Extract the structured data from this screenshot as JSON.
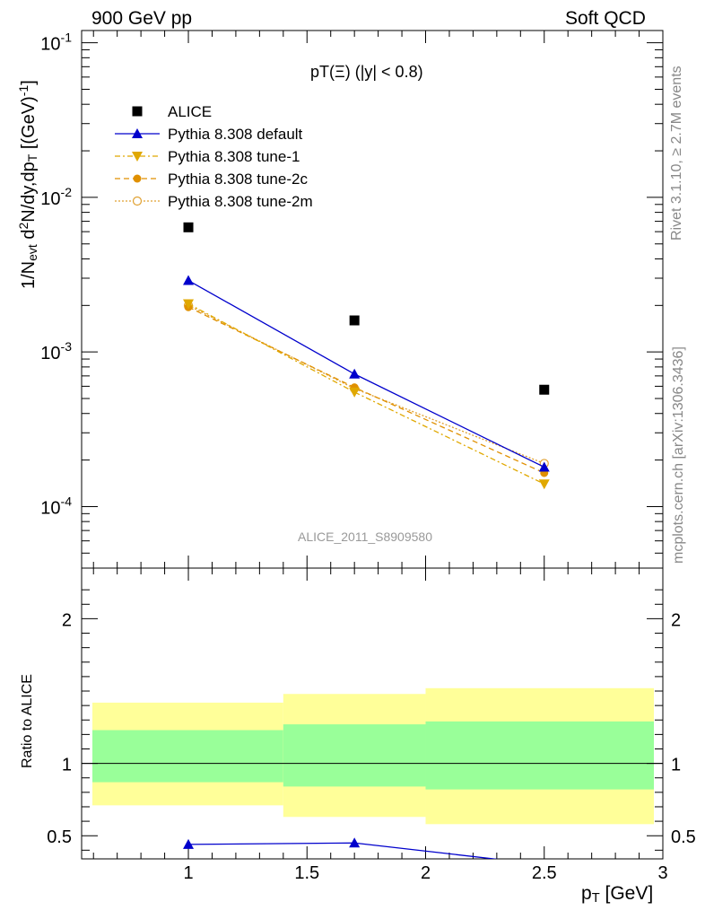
{
  "header": {
    "left_title": "900 GeV pp",
    "right_title": "Soft QCD"
  },
  "side_text": {
    "rivet": "Rivet 3.1.10, ≥ 2.7M events",
    "mcplots": "mcplots.cern.ch [arXiv:1306.3436]"
  },
  "plot": {
    "title": "pT(Ξ) (|y| < 0.8)",
    "analysis_id": "ALICE_2011_S8909580",
    "ylabel_parts": {
      "a": "1/N",
      "b": "evt",
      "c": " d",
      "d": "2",
      "e": "N/dy,dp",
      "f": "T",
      "g": " [(GeV)",
      "h": "-1",
      "i": "]"
    },
    "ratio_ylabel": "Ratio to ALICE",
    "xlabel_parts": {
      "a": "p",
      "b": "T",
      "c": " [GeV]"
    }
  },
  "colors": {
    "alice": "#000000",
    "default": "#0000cc",
    "tune1": "#e0a800",
    "tune2c": "#e09000",
    "tune2m": "#e0a030",
    "band_yellow": "#ffff99",
    "band_green": "#99ff99"
  },
  "chart_data": {
    "type": "scatter",
    "x_range": [
      0.55,
      3.0
    ],
    "main_panel": {
      "yscale": "log",
      "ylim": [
        4e-05,
        0.12
      ],
      "yticks": [
        {
          "value": 0.0001,
          "mant": "10",
          "exp": "-4"
        },
        {
          "value": 0.001,
          "mant": "10",
          "exp": "-3"
        },
        {
          "value": 0.01,
          "mant": "10",
          "exp": "-2"
        },
        {
          "value": 0.1,
          "mant": "10",
          "exp": "-1"
        }
      ],
      "legend_position": "top-left",
      "series": [
        {
          "name": "ALICE",
          "style": "square",
          "x": [
            1.0,
            1.7,
            2.5
          ],
          "y": [
            0.0064,
            0.0016,
            0.00057
          ]
        },
        {
          "name": "Pythia 8.308 default",
          "style": "triangle-up",
          "x": [
            1.0,
            1.7,
            2.5
          ],
          "y": [
            0.0029,
            0.00072,
            0.00018
          ]
        },
        {
          "name": "Pythia 8.308 tune-1",
          "style": "triangle-down",
          "x": [
            1.0,
            1.7,
            2.5
          ],
          "y": [
            0.00205,
            0.00055,
            0.00014
          ]
        },
        {
          "name": "Pythia 8.308 tune-2c",
          "style": "circle",
          "x": [
            1.0,
            1.7,
            2.5
          ],
          "y": [
            0.00195,
            0.00059,
            0.000165
          ]
        },
        {
          "name": "Pythia 8.308 tune-2m",
          "style": "open-circle",
          "x": [
            1.0,
            1.7,
            2.5
          ],
          "y": [
            0.002,
            0.00058,
            0.00019
          ]
        }
      ]
    },
    "ratio_panel": {
      "ylim": [
        0.34,
        2.35
      ],
      "yticks": [
        {
          "value": 0.5,
          "label": "0.5"
        },
        {
          "value": 1,
          "label": "1"
        },
        {
          "value": 2,
          "label": "2"
        }
      ],
      "reference": 1,
      "bands": [
        {
          "x0": 0.55,
          "x1": 1.4,
          "yellow": [
            0.71,
            1.42
          ],
          "green": [
            0.87,
            1.23
          ]
        },
        {
          "x0": 1.4,
          "x1": 2.0,
          "yellow": [
            0.63,
            1.48
          ],
          "green": [
            0.84,
            1.27
          ]
        },
        {
          "x0": 2.0,
          "x1": 3.0,
          "yellow": [
            0.58,
            1.52
          ],
          "green": [
            0.82,
            1.29
          ]
        }
      ],
      "default_ratio": {
        "x": [
          1.0,
          1.7,
          2.5
        ],
        "y": [
          0.44,
          0.45,
          0.3
        ]
      }
    },
    "xticks": [
      {
        "value": 1,
        "label": "1"
      },
      {
        "value": 1.5,
        "label": "1.5"
      },
      {
        "value": 2,
        "label": "2"
      },
      {
        "value": 2.5,
        "label": "2.5"
      },
      {
        "value": 3,
        "label": "3"
      }
    ]
  }
}
